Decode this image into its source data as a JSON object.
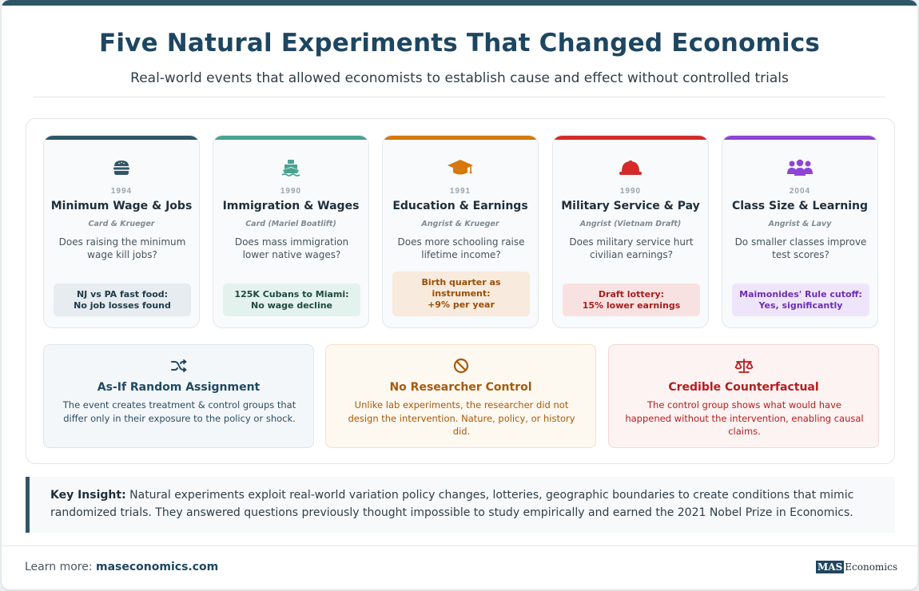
{
  "header": {
    "title": "Five Natural Experiments That Changed Economics",
    "subtitle": "Real-world events that allowed economists to establish cause and effect without controlled trials"
  },
  "experiments": [
    {
      "icon": "burger-icon",
      "color": "#2f5668",
      "year": "1994",
      "title": "Minimum Wage & Jobs",
      "authors": "Card & Krueger",
      "question": "Does raising the minimum wage kill jobs?",
      "finding": [
        "NJ vs PA fast food:",
        "No job losses found"
      ],
      "finding_bg": "#e6ecef",
      "finding_color": "#1f3a4a"
    },
    {
      "icon": "ship-icon",
      "color": "#4aa391",
      "year": "1990",
      "title": "Immigration & Wages",
      "authors": "Card (Mariel Boatlift)",
      "question": "Does mass immigration lower native wages?",
      "finding": [
        "125K Cubans to Miami:",
        "No wage decline"
      ],
      "finding_bg": "#e4f2ee",
      "finding_color": "#1f4a40"
    },
    {
      "icon": "graduation-cap-icon",
      "color": "#d6780c",
      "year": "1991",
      "title": "Education & Earnings",
      "authors": "Angrist & Krueger",
      "question": "Does more schooling raise lifetime income?",
      "finding": [
        "Birth quarter as",
        "instrument:",
        "+9% per year"
      ],
      "finding_bg": "#f8eadc",
      "finding_color": "#9a4f08"
    },
    {
      "icon": "helmet-icon",
      "color": "#d42a2a",
      "year": "1990",
      "title": "Military Service & Pay",
      "authors": "Angrist (Vietnam Draft)",
      "question": "Does military service hurt civilian earnings?",
      "finding": [
        "Draft lottery:",
        "15% lower earnings"
      ],
      "finding_bg": "#f8e1e1",
      "finding_color": "#a81e1e"
    },
    {
      "icon": "people-group-icon",
      "color": "#8e44d6",
      "year": "2004",
      "title": "Class Size & Learning",
      "authors": "Angrist & Lavy",
      "question": "Do smaller classes improve test scores?",
      "finding": [
        "Maimonides' Rule cutoff:",
        "Yes, significantly"
      ],
      "finding_bg": "#efe5fb",
      "finding_color": "#6d2fb3"
    }
  ],
  "features": [
    {
      "icon": "shuffle-icon",
      "title": "As-If Random Assignment",
      "description": "The event creates treatment & control groups that differ only in their exposure to the policy or shock.",
      "bg": "#f4f7f9",
      "border": "#dde4e9",
      "title_color": "#1f4a62",
      "text_color": "#2c4d62"
    },
    {
      "icon": "ban-icon",
      "title": "No Researcher Control",
      "description": "Unlike lab experiments, the researcher did not design the intervention. Nature, policy, or history did.",
      "bg": "#fdf8f0",
      "border": "#f3e2c7",
      "title_color": "#a85a0a",
      "text_color": "#a85a0a"
    },
    {
      "icon": "scale-icon",
      "title": "Credible Counterfactual",
      "description": "The control group shows what would have happened without the intervention, enabling causal claims.",
      "bg": "#fdf3f3",
      "border": "#f4d5d5",
      "title_color": "#b51d1d",
      "text_color": "#b51d1d"
    }
  ],
  "insight": {
    "label": "Key Insight:",
    "text": "Natural experiments exploit real-world variation policy changes, lotteries, geographic boundaries to create conditions that mimic randomized trials. They answered questions previously thought impossible to study empirically and earned the 2021 Nobel Prize in Economics."
  },
  "footer": {
    "learn_more": "Learn more:",
    "url": "maseconomics.com",
    "logo_box": "MAS",
    "logo_rest": "Economics"
  }
}
